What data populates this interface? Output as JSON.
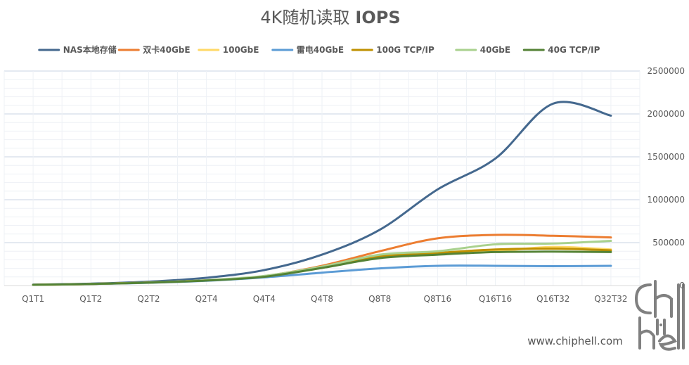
{
  "chart_data": {
    "type": "line",
    "title": "4K随机读取",
    "title_suffix": "IOPS",
    "categories": [
      "Q1T1",
      "Q1T2",
      "Q2T2",
      "Q2T4",
      "Q4T4",
      "Q4T8",
      "Q8T8",
      "Q8T16",
      "Q16T16",
      "Q16T32",
      "Q32T32"
    ],
    "ylim": [
      0,
      2500000
    ],
    "yticks": [
      0,
      500000,
      1000000,
      1500000,
      2000000,
      2500000
    ],
    "y_axis_side": "right",
    "grid": true,
    "legend_position": "top",
    "series": [
      {
        "name": "NAS本地存储",
        "color": "#44688E",
        "values": [
          10000,
          22000,
          45000,
          90000,
          180000,
          360000,
          650000,
          1120000,
          1480000,
          2120000,
          1980000
        ]
      },
      {
        "name": "双卡40GbE",
        "color": "#EC7D31",
        "values": [
          8000,
          18000,
          35000,
          60000,
          110000,
          230000,
          400000,
          550000,
          590000,
          580000,
          560000
        ]
      },
      {
        "name": "100GbE",
        "color": "#FFD966",
        "values": [
          8000,
          18000,
          35000,
          60000,
          105000,
          210000,
          330000,
          370000,
          400000,
          450000,
          420000
        ]
      },
      {
        "name": "雷电40GbE",
        "color": "#5B9BD5",
        "values": [
          8000,
          18000,
          32000,
          55000,
          95000,
          150000,
          200000,
          230000,
          230000,
          225000,
          230000
        ]
      },
      {
        "name": "100G TCP/IP",
        "color": "#BF9000",
        "values": [
          8000,
          18000,
          35000,
          60000,
          108000,
          215000,
          340000,
          380000,
          420000,
          430000,
          410000
        ]
      },
      {
        "name": "40GbE",
        "color": "#A9D18E",
        "values": [
          8000,
          18000,
          35000,
          62000,
          112000,
          220000,
          360000,
          400000,
          480000,
          490000,
          520000
        ]
      },
      {
        "name": "40G TCP/IP",
        "color": "#548235",
        "values": [
          8000,
          18000,
          34000,
          58000,
          102000,
          205000,
          320000,
          360000,
          390000,
          395000,
          390000
        ]
      }
    ]
  },
  "watermark": {
    "logo_text": "chip hell",
    "url": "www.chiphell.com"
  }
}
